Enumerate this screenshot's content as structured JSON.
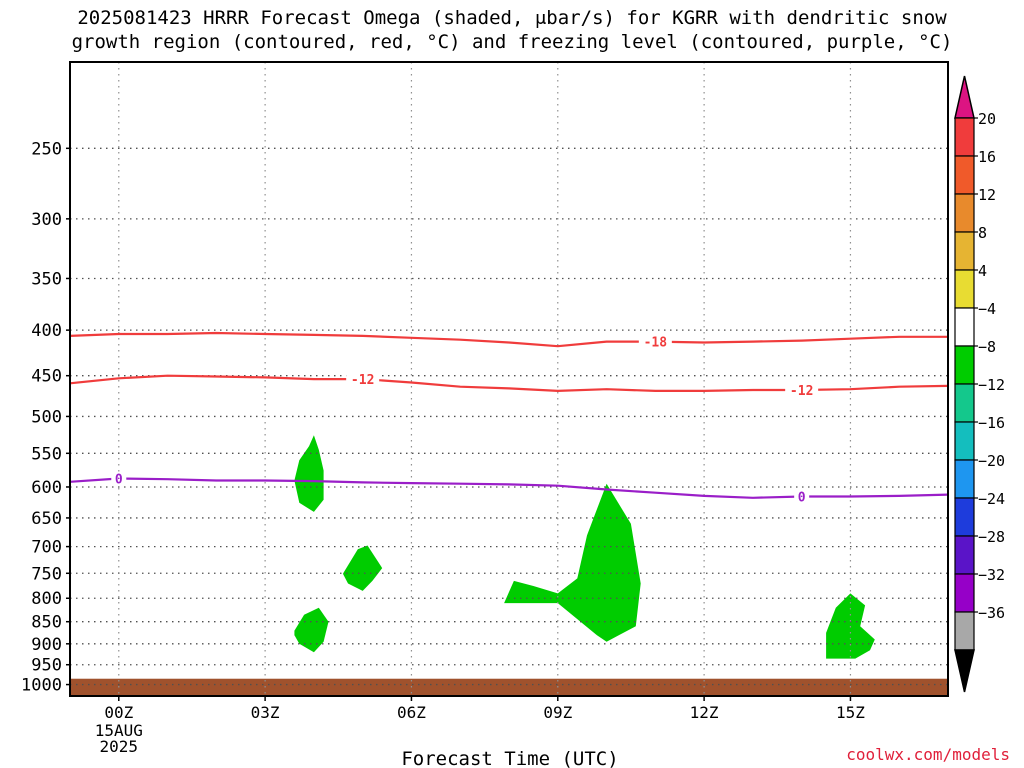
{
  "chart_data": {
    "type": "contour",
    "title_line1": "2025081423 HRRR Forecast Omega (shaded, μbar/s) for KGRR with dendritic snow",
    "title_line2": "growth region (contoured, red, °C) and freezing level (contoured, purple, °C)",
    "xlabel": "Forecast Time (UTC)",
    "x_ticks": [
      "00Z",
      "03Z",
      "06Z",
      "09Z",
      "12Z",
      "15Z"
    ],
    "x_ticks_hours": [
      0,
      3,
      6,
      9,
      12,
      15
    ],
    "x_date_labels": [
      "15AUG",
      "2025"
    ],
    "xlim_hours": [
      -1,
      17
    ],
    "y_ticks": [
      250,
      300,
      350,
      400,
      450,
      500,
      550,
      600,
      650,
      700,
      750,
      800,
      850,
      900,
      950,
      1000
    ],
    "ylim_hpa": [
      1030,
      200
    ],
    "yscale": "log",
    "grid": true,
    "contours": [
      {
        "name": "-18",
        "color": "#f03c3c",
        "level_label": "-18",
        "label_positions_hours": [
          11
        ],
        "hours": [
          -1,
          0,
          1,
          2,
          3,
          4,
          5,
          6,
          7,
          8,
          9,
          10,
          11,
          12,
          13,
          14,
          15,
          16,
          17
        ],
        "pressure": [
          406,
          404,
          404,
          403,
          404,
          405,
          406,
          408,
          410,
          413,
          417,
          412,
          412,
          413,
          412,
          411,
          409,
          407,
          407
        ]
      },
      {
        "name": "-12",
        "color": "#f03c3c",
        "level_label": "-12",
        "label_positions_hours": [
          5,
          14
        ],
        "hours": [
          -1,
          0,
          1,
          2,
          3,
          4,
          5,
          6,
          7,
          8,
          9,
          10,
          11,
          12,
          13,
          14,
          15,
          16,
          17
        ],
        "pressure": [
          459,
          453,
          450,
          451,
          452,
          454,
          454,
          458,
          463,
          465,
          468,
          466,
          468,
          468,
          467,
          467,
          466,
          463,
          462
        ]
      },
      {
        "name": "0",
        "color": "#9a1ec8",
        "level_label": "0",
        "label_positions_hours": [
          0,
          14
        ],
        "hours": [
          -1,
          0,
          1,
          2,
          3,
          4,
          5,
          6,
          7,
          8,
          9,
          10,
          11,
          12,
          13,
          14,
          15,
          16,
          17
        ],
        "pressure": [
          592,
          587,
          588,
          590,
          590,
          591,
          593,
          594,
          595,
          596,
          598,
          604,
          609,
          614,
          617,
          615,
          615,
          614,
          612
        ]
      }
    ],
    "shaded_regions": [
      {
        "name": "omega-area-1",
        "bin": "-8 to -4",
        "hours": [
          3.7,
          3.9,
          4.0,
          4.1,
          4.2,
          4.2,
          4.0,
          3.7,
          3.6
        ],
        "pressure": [
          560,
          540,
          525,
          545,
          575,
          620,
          640,
          625,
          590
        ]
      },
      {
        "name": "omega-area-2",
        "bin": "-8 to -4",
        "hours": [
          4.6,
          4.9,
          5.1,
          5.4,
          5.2,
          5.0,
          4.7,
          4.6
        ],
        "pressure": [
          750,
          705,
          698,
          740,
          765,
          785,
          770,
          752
        ]
      },
      {
        "name": "omega-area-3",
        "bin": "-8 to -4",
        "hours": [
          3.6,
          3.8,
          4.1,
          4.3,
          4.2,
          4.0,
          3.7,
          3.6
        ],
        "pressure": [
          870,
          835,
          820,
          850,
          895,
          920,
          900,
          880
        ]
      },
      {
        "name": "omega-area-4",
        "bin": "-8 to -4",
        "hours": [
          7.9,
          8.1,
          8.5,
          9.0,
          9.4,
          9.6,
          10.0,
          10.5,
          10.7,
          10.6,
          10.0,
          9.8,
          9.0,
          7.9
        ],
        "pressure": [
          810,
          765,
          775,
          790,
          760,
          680,
          595,
          660,
          770,
          860,
          895,
          880,
          810,
          810
        ]
      },
      {
        "name": "omega-area-5",
        "bin": "-8 to -4",
        "hours": [
          14.5,
          14.7,
          15.0,
          15.3,
          15.2,
          15.5,
          15.4,
          15.1,
          14.5
        ],
        "pressure": [
          875,
          820,
          790,
          815,
          860,
          890,
          915,
          935,
          935
        ]
      }
    ],
    "surface_pressure_hpa": 985,
    "colorbar": {
      "top_arrow_color": "#dc1482",
      "bottom_arrow_color": "#000000",
      "labels": [
        "20",
        "16",
        "12",
        "8",
        "4",
        "−4",
        "−8",
        "−12",
        "−16",
        "−20",
        "−24",
        "−28",
        "−32",
        "−36"
      ],
      "bins_top_to_bottom": [
        {
          "color": "#f03c3c"
        },
        {
          "color": "#f05a2a"
        },
        {
          "color": "#e88a2c"
        },
        {
          "color": "#e6b432"
        },
        {
          "color": "#e8dc32"
        },
        {
          "color": "#ffffff"
        },
        {
          "color": "#00cc00"
        },
        {
          "color": "#14c88c"
        },
        {
          "color": "#14bebe"
        },
        {
          "color": "#1e96f0"
        },
        {
          "color": "#1e3cdc"
        },
        {
          "color": "#5a14c8"
        },
        {
          "color": "#9600c8"
        },
        {
          "color": "#a8a8a8"
        }
      ]
    },
    "colors": {
      "shade": "#00cc00",
      "surface": "#a0522d",
      "grid": "#808080"
    }
  },
  "credit": "coolwx.com/models"
}
